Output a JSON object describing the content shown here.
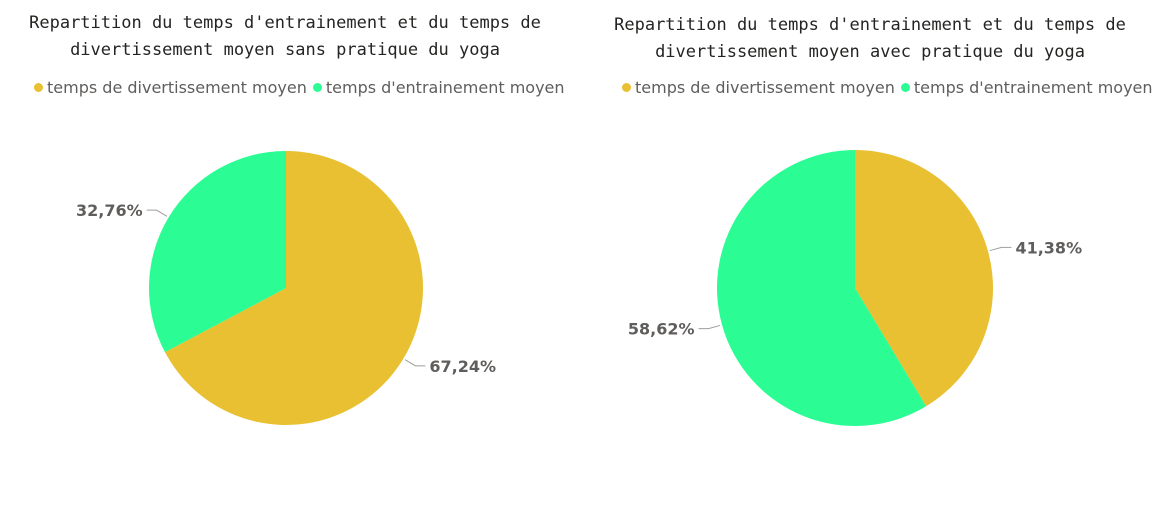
{
  "chart_data": [
    {
      "type": "pie",
      "title": "Repartition du temps d'entrainement et du temps de\ndivertissement moyen sans pratique du yoga",
      "legend_position": "top-left",
      "slices": [
        {
          "label": "temps de divertissement moyen",
          "value": 67.24,
          "display": "67,24%",
          "color": "#E8C031"
        },
        {
          "label": "temps d'entrainement moyen",
          "value": 32.76,
          "display": "32,76%",
          "color": "#2BFD94"
        }
      ]
    },
    {
      "type": "pie",
      "title": "Repartition du temps d'entrainement et du temps de\ndivertissement moyen avec pratique du yoga",
      "legend_position": "top-left",
      "slices": [
        {
          "label": "temps de divertissement moyen",
          "value": 41.38,
          "display": "41,38%",
          "color": "#E8C031"
        },
        {
          "label": "temps d'entrainement moyen",
          "value": 58.62,
          "display": "58,62%",
          "color": "#2BFD94"
        }
      ]
    }
  ]
}
